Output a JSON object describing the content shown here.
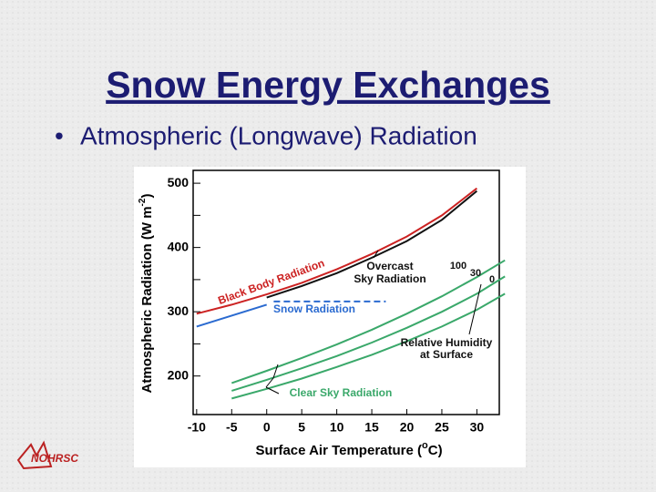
{
  "slide": {
    "title": "Snow Energy Exchanges",
    "bullet": "Atmospheric (Longwave) Radiation",
    "logo": "NOHRSC"
  },
  "chart_data": {
    "type": "line",
    "y_label": "Atmospheric Radiation (W m",
    "y_label_sup": "-2",
    "y_label_end": ")",
    "x_label": "Surface Air Temperature (",
    "x_label_sup": "o",
    "x_label_end": "C)",
    "xlim": [
      -10.5,
      34.5
    ],
    "xticks": [
      -10,
      -5,
      0,
      5,
      10,
      15,
      20,
      25,
      30
    ],
    "ylim": [
      140,
      520
    ],
    "yticks": [
      200,
      300,
      400,
      500
    ],
    "yminorticks": [
      250,
      350,
      450
    ],
    "series": [
      {
        "color": "#cc2222",
        "x": [
          -10,
          -5,
          0,
          5,
          10,
          15,
          20,
          25,
          30
        ],
        "values": [
          297,
          311,
          327,
          345,
          366,
          390,
          417,
          450,
          492
        ]
      },
      {
        "color": "#111111",
        "x": [
          0,
          5,
          10,
          15,
          20,
          25,
          30
        ],
        "values": [
          322,
          340,
          360,
          384,
          410,
          443,
          488
        ]
      },
      {
        "color": "#2a6ad0",
        "x": [
          -10,
          -5,
          0
        ],
        "values": [
          277,
          294,
          311
        ]
      },
      {
        "color": "#2a6ad0",
        "dashed": true,
        "x": [
          1,
          17
        ],
        "values": [
          316,
          316
        ]
      },
      {
        "color": "#3aa86a",
        "x": [
          -5,
          0,
          5,
          10,
          15,
          20,
          25,
          30,
          34
        ],
        "values": [
          189,
          208,
          228,
          249,
          272,
          297,
          324,
          354,
          380
        ]
      },
      {
        "color": "#3aa86a",
        "x": [
          -5,
          0,
          5,
          10,
          15,
          20,
          25,
          30,
          34
        ],
        "values": [
          177,
          194,
          212,
          231,
          252,
          275,
          300,
          328,
          355
        ]
      },
      {
        "color": "#3aa86a",
        "x": [
          -5,
          0,
          5,
          10,
          15,
          20,
          25,
          30,
          34
        ],
        "values": [
          165,
          180,
          196,
          214,
          233,
          254,
          277,
          303,
          328
        ]
      }
    ],
    "annotations": [
      "Black Body Radiation",
      "Snow Radiation",
      "Overcast",
      "Sky Radiation",
      "100",
      "30",
      "0",
      "Relative Humidity",
      "at Surface",
      "Clear Sky Radiation"
    ]
  }
}
